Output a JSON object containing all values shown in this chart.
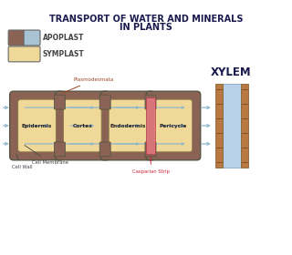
{
  "title_line1": "TRANSPORT OF WATER AND MINERALS",
  "title_line2": "IN PLANTS",
  "title_color": "#1a1a4e",
  "title_fontsize": 7.0,
  "bg_color": "#ffffff",
  "legend_apoplast_colors": [
    "#8B6355",
    "#a8c4d4"
  ],
  "legend_symplast_color": "#f0d898",
  "legend_label_apoplast": "APOPLAST",
  "legend_label_symplast": "SYMPLAST",
  "cell_outer_color": "#8B6355",
  "cell_inner_color": "#f0d898",
  "arrow_color": "#90b8cc",
  "casparian_color": "#e07880",
  "xylem_wood_color": "#b87840",
  "xylem_water_color": "#b8d0e8",
  "cell_labels": [
    "Epidermis",
    "Cortex",
    "Endodermis",
    "Pericycle"
  ],
  "label_plasmodesmata": "Plasmodesmata",
  "label_cell_membrane": "Cell Membrane",
  "label_cell_wall": "Cell Wall",
  "label_casparian": "Casparian Strip",
  "label_xylem": "XYLEM",
  "annotation_color": "#444444",
  "casparian_label_color": "#cc2233",
  "xylem_label_color": "#1a1a4e",
  "plasmodesmata_color": "#994422"
}
